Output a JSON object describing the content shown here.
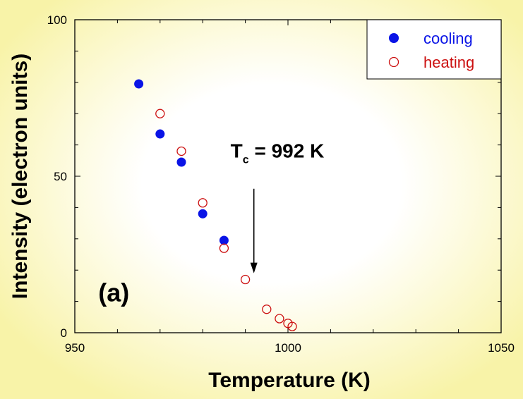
{
  "chart_data": {
    "type": "scatter",
    "xlabel": "Temperature  (K)",
    "ylabel": "Intensity  (electron units)",
    "xlim": [
      950,
      1050
    ],
    "ylim": [
      0,
      100
    ],
    "xticks": [
      "950",
      "1000",
      "1050"
    ],
    "yticks": [
      "0",
      "50",
      "100"
    ],
    "legend_position": "top-right",
    "series": [
      {
        "name": "cooling",
        "marker": "filled-circle",
        "color": "#0a14e6",
        "points": [
          {
            "x": 965,
            "y": 79.5
          },
          {
            "x": 970,
            "y": 63.5
          },
          {
            "x": 975,
            "y": 54.5
          },
          {
            "x": 980,
            "y": 38.0
          },
          {
            "x": 985,
            "y": 29.5
          }
        ]
      },
      {
        "name": "heating",
        "marker": "open-circle",
        "color": "#cc1010",
        "points": [
          {
            "x": 970,
            "y": 70.0
          },
          {
            "x": 975,
            "y": 58.0
          },
          {
            "x": 980,
            "y": 41.5
          },
          {
            "x": 985,
            "y": 27.0
          },
          {
            "x": 990,
            "y": 17.0
          },
          {
            "x": 995,
            "y": 7.5
          },
          {
            "x": 998,
            "y": 4.5
          },
          {
            "x": 1000,
            "y": 3.0
          },
          {
            "x": 1001,
            "y": 2.0
          }
        ]
      }
    ],
    "annotations": {
      "tc_prefix": "T",
      "tc_subscript": "c",
      "tc_value": " = 992 K",
      "tc_arrow_x": 992,
      "tc_arrow_y_top": 46,
      "tc_arrow_y_bottom": 19,
      "panel_label": "(a)"
    }
  }
}
